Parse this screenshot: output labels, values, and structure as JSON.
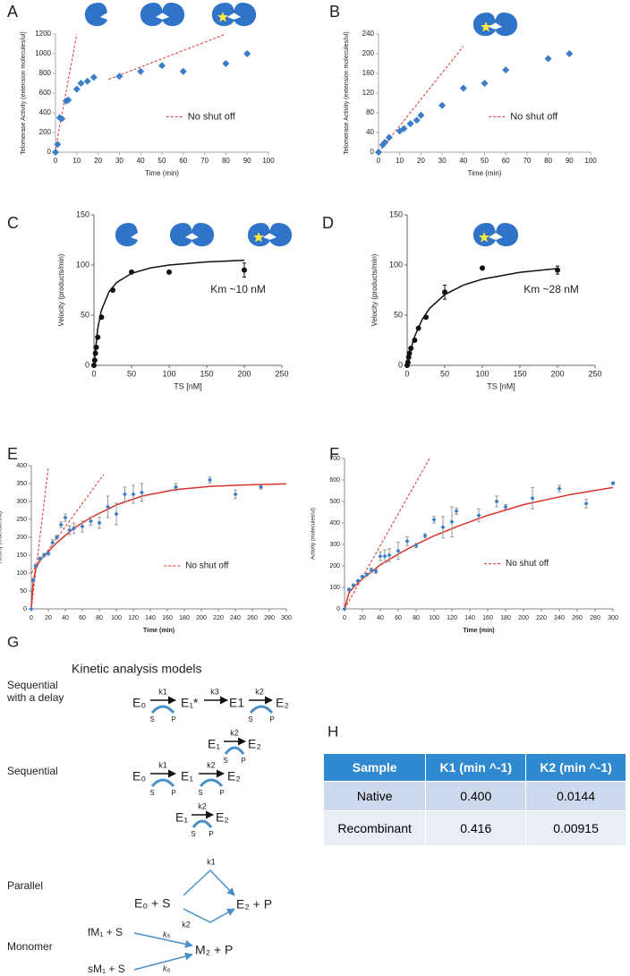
{
  "chart_data": [
    {
      "type": "scatter",
      "label": "A",
      "xlabel": "Time (min)",
      "ylabel": "Telomerase Activity  (extension molecules/ul)",
      "xlim": [
        0,
        100
      ],
      "xticks": [
        0,
        10,
        20,
        30,
        40,
        50,
        60,
        70,
        80,
        90,
        100
      ],
      "ylim": [
        0,
        1200
      ],
      "yticks": [
        0,
        200,
        400,
        600,
        800,
        1000,
        1200
      ],
      "marker": "diamond",
      "legend": "lower right",
      "series": [
        {
          "type": "line",
          "name": "No shut off",
          "color": "#e03131",
          "style": "dashed",
          "x": [
            0,
            10,
            null,
            25,
            80
          ],
          "values": [
            30,
            1200,
            null,
            740,
            1200
          ]
        },
        {
          "type": "scatter",
          "color": "#3a7dc9",
          "x": [
            0,
            1,
            2,
            3,
            5,
            6,
            10,
            12,
            15,
            18,
            30,
            40,
            50,
            60,
            80,
            90
          ],
          "values": [
            0,
            80,
            350,
            340,
            520,
            530,
            640,
            700,
            720,
            760,
            770,
            820,
            880,
            820,
            900,
            1000
          ]
        }
      ]
    },
    {
      "type": "scatter",
      "label": "B",
      "xlabel": "Time (min)",
      "ylabel": "Telomerase Activity  (extension molecules/ul)",
      "xlim": [
        0,
        100
      ],
      "xticks": [
        0,
        10,
        20,
        30,
        40,
        50,
        60,
        70,
        80,
        90,
        100
      ],
      "ylim": [
        0,
        240
      ],
      "yticks": [
        0,
        40,
        80,
        120,
        160,
        200,
        240
      ],
      "marker": "diamond",
      "legend": "lower right",
      "series": [
        {
          "type": "line",
          "name": "No shut off",
          "color": "#e03131",
          "style": "dashed",
          "x": [
            0,
            40
          ],
          "values": [
            0,
            215
          ]
        },
        {
          "type": "scatter",
          "color": "#3a7dc9",
          "x": [
            0,
            2,
            3,
            5,
            10,
            12,
            15,
            18,
            20,
            30,
            40,
            50,
            60,
            80,
            90
          ],
          "values": [
            0,
            15,
            20,
            30,
            43,
            48,
            58,
            65,
            75,
            95,
            130,
            140,
            167,
            190,
            200
          ]
        }
      ]
    },
    {
      "type": "scatter",
      "label": "C",
      "xlabel": "TS [nM]",
      "ylabel": "Velocity (products/min)",
      "annotation": "Km ~10 nM",
      "xlim": [
        0,
        250
      ],
      "xticks": [
        0,
        50,
        100,
        150,
        200,
        250
      ],
      "ylim": [
        0,
        150
      ],
      "yticks": [
        0,
        50,
        100,
        150
      ],
      "marker": "circle",
      "series": [
        {
          "type": "line",
          "color": "#111111",
          "style": "solid",
          "x": [
            0,
            5,
            10,
            20,
            30,
            50,
            75,
            100,
            150,
            200
          ],
          "values": [
            0,
            36.7,
            55,
            73.3,
            82.5,
            91.7,
            97.1,
            100,
            103.1,
            104.8
          ]
        },
        {
          "type": "scatter",
          "color": "#111111",
          "x": [
            0,
            1,
            2,
            3,
            5,
            10,
            25,
            50,
            100,
            200
          ],
          "values": [
            0,
            5,
            12,
            18,
            28,
            48,
            75,
            93,
            93,
            95
          ],
          "errors": [
            null,
            null,
            null,
            null,
            null,
            null,
            null,
            null,
            null,
            7
          ]
        }
      ]
    },
    {
      "type": "scatter",
      "label": "D",
      "xlabel": "TS [nM]",
      "ylabel": "Velocity (products/min)",
      "annotation": "Km ~28 nM",
      "xlim": [
        0,
        250
      ],
      "xticks": [
        0,
        50,
        100,
        150,
        200,
        250
      ],
      "ylim": [
        0,
        150
      ],
      "yticks": [
        0,
        50,
        100,
        150
      ],
      "marker": "circle",
      "series": [
        {
          "type": "line",
          "color": "#111111",
          "style": "solid",
          "x": [
            0,
            5,
            10,
            20,
            30,
            50,
            75,
            100,
            150,
            200
          ],
          "values": [
            0,
            16.7,
            28.9,
            45.8,
            56.9,
            70.5,
            80.1,
            85.9,
            92.7,
            96.5
          ]
        },
        {
          "type": "scatter",
          "color": "#111111",
          "x": [
            0,
            1,
            2,
            3,
            5,
            10,
            15,
            25,
            50,
            100,
            200
          ],
          "values": [
            0,
            3,
            8,
            12,
            17,
            25,
            37,
            48,
            73,
            97,
            95
          ],
          "errors": [
            null,
            null,
            null,
            null,
            null,
            null,
            null,
            null,
            7,
            null,
            4
          ]
        }
      ]
    },
    {
      "type": "scatter",
      "label": "E",
      "xlabel": "Time (min)",
      "ylabel": "Activity (molecules/ul)",
      "xlim": [
        0,
        300
      ],
      "xticks": [
        0,
        20,
        40,
        60,
        80,
        100,
        120,
        140,
        160,
        180,
        200,
        220,
        240,
        260,
        280,
        300
      ],
      "ylim": [
        0,
        400
      ],
      "yticks": [
        0,
        50,
        100,
        150,
        200,
        250,
        300,
        350,
        400
      ],
      "marker": "diamond",
      "legend": "lower right",
      "series": [
        {
          "type": "line",
          "name": "No shut off",
          "color": "#e03131",
          "style": "dashed",
          "x": [
            0,
            20,
            null,
            0,
            85
          ],
          "values": [
            0,
            395,
            null,
            100,
            375
          ]
        },
        {
          "type": "line",
          "color": "#d9342b",
          "style": "solid",
          "x": [
            0,
            2,
            5,
            10,
            20,
            30,
            50,
            70,
            100,
            130,
            170,
            210,
            250,
            300
          ],
          "values": [
            0,
            70,
            110,
            135,
            160,
            185,
            225,
            255,
            290,
            315,
            333,
            342,
            346,
            349
          ]
        },
        {
          "type": "scatter",
          "color": "#3a7dc9",
          "x": [
            0,
            2,
            5,
            10,
            15,
            20,
            25,
            30,
            35,
            40,
            45,
            50,
            60,
            70,
            80,
            90,
            100,
            110,
            120,
            130,
            170,
            210,
            240,
            270
          ],
          "values": [
            0,
            80,
            120,
            140,
            150,
            155,
            185,
            200,
            235,
            255,
            220,
            225,
            230,
            245,
            240,
            285,
            265,
            320,
            320,
            325,
            340,
            360,
            320,
            340
          ],
          "errors": [
            0,
            5,
            5,
            5,
            5,
            5,
            8,
            5,
            8,
            10,
            12,
            15,
            15,
            12,
            15,
            30,
            30,
            20,
            25,
            25,
            10,
            8,
            12,
            5
          ]
        }
      ]
    },
    {
      "type": "scatter",
      "label": "F",
      "xlabel": "Time (min)",
      "ylabel": "Activity (molecules/ul)",
      "xlim": [
        0,
        300
      ],
      "xticks": [
        0,
        20,
        40,
        60,
        80,
        100,
        120,
        140,
        160,
        180,
        200,
        220,
        240,
        260,
        280,
        300
      ],
      "ylim": [
        0,
        700
      ],
      "yticks": [
        0,
        100,
        200,
        300,
        400,
        500,
        600,
        700
      ],
      "marker": "diamond",
      "legend": "lower right",
      "series": [
        {
          "type": "line",
          "name": "No shut off",
          "color": "#e03131",
          "style": "dashed",
          "x": [
            0,
            95
          ],
          "values": [
            0,
            700
          ]
        },
        {
          "type": "line",
          "color": "#d9342b",
          "style": "solid",
          "x": [
            0,
            5,
            10,
            20,
            40,
            60,
            80,
            100,
            130,
            160,
            200,
            250,
            300
          ],
          "values": [
            0,
            75,
            100,
            140,
            205,
            255,
            300,
            340,
            390,
            435,
            485,
            530,
            565
          ]
        },
        {
          "type": "scatter",
          "color": "#3a7dc9",
          "x": [
            0,
            5,
            10,
            15,
            20,
            25,
            30,
            35,
            40,
            45,
            50,
            60,
            70,
            80,
            90,
            100,
            110,
            120,
            125,
            150,
            170,
            180,
            210,
            240,
            270,
            300
          ],
          "values": [
            0,
            90,
            110,
            130,
            150,
            160,
            180,
            175,
            245,
            245,
            250,
            270,
            315,
            295,
            340,
            415,
            380,
            405,
            455,
            435,
            500,
            475,
            515,
            560,
            490,
            585
          ],
          "errors": [
            0,
            5,
            5,
            5,
            5,
            5,
            10,
            10,
            20,
            30,
            30,
            40,
            20,
            10,
            10,
            15,
            50,
            70,
            15,
            30,
            25,
            10,
            50,
            15,
            20,
            5
          ]
        }
      ]
    }
  ],
  "diagram": {
    "label": "G",
    "title": "Kinetic analysis models",
    "substrate": "S",
    "product": "P",
    "models": [
      {
        "name": [
          "Sequential",
          "with a delay"
        ],
        "rows": [
          {
            "terms": [
              "E₀",
              "E₁*",
              "E1",
              "E₂"
            ],
            "rates": [
              "k1",
              "k3",
              "k2"
            ]
          },
          {
            "terms": [
              "E₁",
              "E₂"
            ],
            "rates": [
              "k2"
            ]
          }
        ]
      },
      {
        "name": [
          "Sequential"
        ],
        "rows": [
          {
            "terms": [
              "E₀",
              "E₁",
              "E₂"
            ],
            "rates": [
              "k1",
              "k2"
            ]
          },
          {
            "terms": [
              "E₁",
              "E₂"
            ],
            "rates": [
              "k2"
            ]
          }
        ]
      },
      {
        "name": [
          "Parallel"
        ],
        "rows": [
          {
            "terms": [
              "E₀ + S",
              "E₂ + P"
            ],
            "rates": [
              "k1",
              "k2"
            ]
          }
        ]
      },
      {
        "name": [
          "Monomer"
        ],
        "rows": [
          {
            "terms": [
              "fM₁ + S",
              "sM₁ + S",
              "M₂ + P"
            ],
            "rates": [
              "k₅",
              "k₆"
            ]
          }
        ]
      }
    ]
  },
  "table": {
    "label": "H",
    "header": [
      "Sample",
      "K1 (min ^-1)",
      "K2 (min ^-1)"
    ],
    "rows": [
      [
        "Native",
        "0.400",
        "0.0144"
      ],
      [
        "Recombinant",
        "0.416",
        "0.00915"
      ]
    ]
  }
}
